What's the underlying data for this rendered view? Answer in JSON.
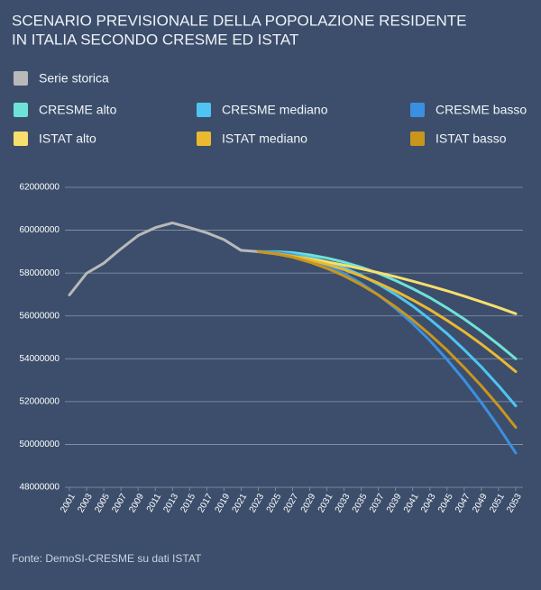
{
  "chart_data": {
    "type": "line",
    "title": [
      "SCENARIO PREVISIONALE DELLA POPOLAZIONE RESIDENTE",
      "IN ITALIA SECONDO CRESME ED ISTAT"
    ],
    "source": "Fonte: DemoSI-CRESME su dati ISTAT",
    "x": [
      2001,
      2003,
      2005,
      2007,
      2009,
      2011,
      2013,
      2015,
      2017,
      2019,
      2021,
      2023,
      2025,
      2027,
      2029,
      2031,
      2033,
      2035,
      2037,
      2039,
      2041,
      2043,
      2045,
      2047,
      2049,
      2051,
      2053
    ],
    "xlim": [
      2001,
      2053
    ],
    "xticks": [
      2001,
      2003,
      2005,
      2007,
      2009,
      2011,
      2013,
      2015,
      2017,
      2019,
      2021,
      2023,
      2025,
      2027,
      2029,
      2031,
      2033,
      2035,
      2037,
      2039,
      2041,
      2043,
      2045,
      2047,
      2049,
      2051,
      2053
    ],
    "ylim": [
      48000000,
      62000000
    ],
    "yticks": [
      48000000,
      50000000,
      52000000,
      54000000,
      56000000,
      58000000,
      60000000,
      62000000
    ],
    "grid": true,
    "series": [
      {
        "name": "Serie storica",
        "color": "#b9b9b9",
        "values": [
          56980000,
          57990000,
          58460000,
          59130000,
          59750000,
          60120000,
          60340000,
          60120000,
          59880000,
          59560000,
          59060000,
          59000000,
          null,
          null,
          null,
          null,
          null,
          null,
          null,
          null,
          null,
          null,
          null,
          null,
          null,
          null,
          null
        ]
      },
      {
        "name": "CRESME alto",
        "color": "#6ee2d6",
        "values": [
          null,
          null,
          null,
          null,
          null,
          null,
          null,
          null,
          null,
          null,
          null,
          59000000,
          59000000,
          58950000,
          58850000,
          58700000,
          58510000,
          58270000,
          57990000,
          57650000,
          57270000,
          56850000,
          56370000,
          55850000,
          55280000,
          54660000,
          54000000
        ]
      },
      {
        "name": "CRESME mediano",
        "color": "#4fc4f2",
        "values": [
          null,
          null,
          null,
          null,
          null,
          null,
          null,
          null,
          null,
          null,
          null,
          59000000,
          58980000,
          58900000,
          58740000,
          58530000,
          58250000,
          57900000,
          57480000,
          57000000,
          56460000,
          55840000,
          55170000,
          54420000,
          53620000,
          52740000,
          51800000
        ]
      },
      {
        "name": "CRESME basso",
        "color": "#3b8fe0",
        "values": [
          null,
          null,
          null,
          null,
          null,
          null,
          null,
          null,
          null,
          null,
          null,
          59000000,
          58970000,
          58840000,
          58640000,
          58350000,
          57980000,
          57520000,
          56980000,
          56350000,
          55640000,
          54850000,
          53960000,
          53000000,
          51950000,
          50820000,
          49600000
        ]
      },
      {
        "name": "ISTAT alto",
        "color": "#f7df6e",
        "values": [
          null,
          null,
          null,
          null,
          null,
          null,
          null,
          null,
          null,
          null,
          null,
          59000000,
          58900000,
          58790000,
          58660000,
          58520000,
          58370000,
          58200000,
          58020000,
          57830000,
          57620000,
          57400000,
          57170000,
          56920000,
          56660000,
          56390000,
          56100000
        ]
      },
      {
        "name": "ISTAT mediano",
        "color": "#eab92f",
        "values": [
          null,
          null,
          null,
          null,
          null,
          null,
          null,
          null,
          null,
          null,
          null,
          59000000,
          58910000,
          58790000,
          58620000,
          58410000,
          58160000,
          57860000,
          57530000,
          57160000,
          56740000,
          56290000,
          55790000,
          55260000,
          54680000,
          54060000,
          53400000
        ]
      },
      {
        "name": "ISTAT basso",
        "color": "#c8961d",
        "values": [
          null,
          null,
          null,
          null,
          null,
          null,
          null,
          null,
          null,
          null,
          null,
          59000000,
          58900000,
          58740000,
          58510000,
          58220000,
          57870000,
          57450000,
          56970000,
          56420000,
          55810000,
          55130000,
          54400000,
          53590000,
          52730000,
          51800000,
          50800000
        ]
      }
    ]
  }
}
